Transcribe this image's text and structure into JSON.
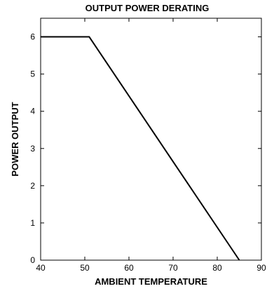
{
  "chart_data": {
    "type": "line",
    "title": "OUTPUT POWER DERATING",
    "xlabel": "AMBIENT TEMPERATURE",
    "ylabel": "POWER OUTPUT",
    "xlim": [
      40,
      90
    ],
    "ylim": [
      0,
      6.5
    ],
    "xticks": [
      40,
      50,
      60,
      70,
      80,
      90
    ],
    "yticks": [
      0,
      1,
      2,
      3,
      4,
      5,
      6
    ],
    "grid": false,
    "series": [
      {
        "x": [
          40,
          51,
          85
        ],
        "y": [
          6,
          6,
          0
        ],
        "color": "#000000"
      }
    ]
  }
}
